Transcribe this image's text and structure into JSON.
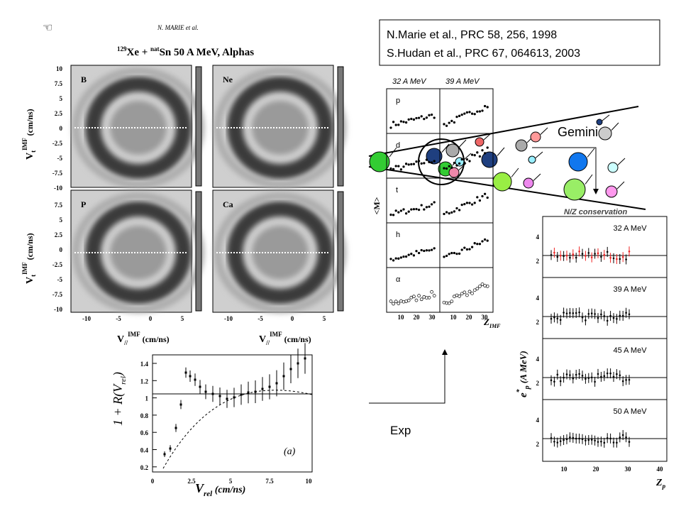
{
  "header_note": "N. MARIE et al.",
  "references": [
    "N.Marie et al., PRC 58, 256, 1998",
    "S.Hudan et al., PRC 67, 064613, 2003"
  ],
  "velocity_maps": {
    "title": {
      "mass": "129",
      "projectile": "Xe + ",
      "nat": "nat",
      "rest": "Sn 50 A MeV, Alphas"
    },
    "panels": [
      "B",
      "Ne",
      "P",
      "Ca"
    ],
    "y_label": {
      "main": "V",
      "sub": "t",
      "sup": "IMF",
      "unit": " (cm/ns)"
    },
    "yticks_top": [
      "10",
      "7.5",
      "5",
      "2.5",
      "0",
      "-2.5",
      "-5",
      "-7.5",
      "-10"
    ],
    "yticks_bottom": [
      "7.5",
      "5",
      "2.5",
      "0",
      "-2.5",
      "-5",
      "-7.5",
      "-10"
    ],
    "xticks": [
      "-10",
      "-5",
      "0",
      "5"
    ],
    "x_label": {
      "main": "V",
      "sub": "//",
      "sup": "IMF",
      "unit": " (cm/ns)"
    }
  },
  "correlation": {
    "y_label": {
      "main": "1 + R(V",
      "sub": "rel",
      "end": ")"
    },
    "yticks": [
      "1.4",
      "1.2",
      "1",
      "0.8",
      "0.6",
      "0.4",
      "0.2"
    ],
    "xticks": [
      "0",
      "2.5",
      "5",
      "7.5",
      "10"
    ],
    "x_label": {
      "main": "V",
      "sub": "rel",
      "unit": " (cm/ns)"
    },
    "tag": "(a)"
  },
  "multiplicity": {
    "headers": [
      "32 A MeV",
      "39 A MeV"
    ],
    "particles": [
      "p",
      "d",
      "t",
      "h",
      "α"
    ],
    "y_label": "<M>",
    "xticks": [
      "10",
      "20",
      "30",
      "10",
      "20",
      "30"
    ],
    "x_label": {
      "main": "Z",
      "sub": "IMF"
    }
  },
  "gemini": {
    "label": "Gemini",
    "caption": "N/Z conservation"
  },
  "excitation": {
    "panels": [
      "32 A MeV",
      "39 A MeV",
      "45 A MeV",
      "50 A MeV"
    ],
    "yticks": [
      "4",
      "2"
    ],
    "y_label": {
      "main": "e",
      "sup": "*",
      "sub": "p",
      "unit": " (A MeV)"
    },
    "xticks": [
      "10",
      "20",
      "30",
      "40"
    ],
    "x_label": {
      "main": "Z",
      "sub": "p"
    }
  },
  "exp_label": "Exp"
}
